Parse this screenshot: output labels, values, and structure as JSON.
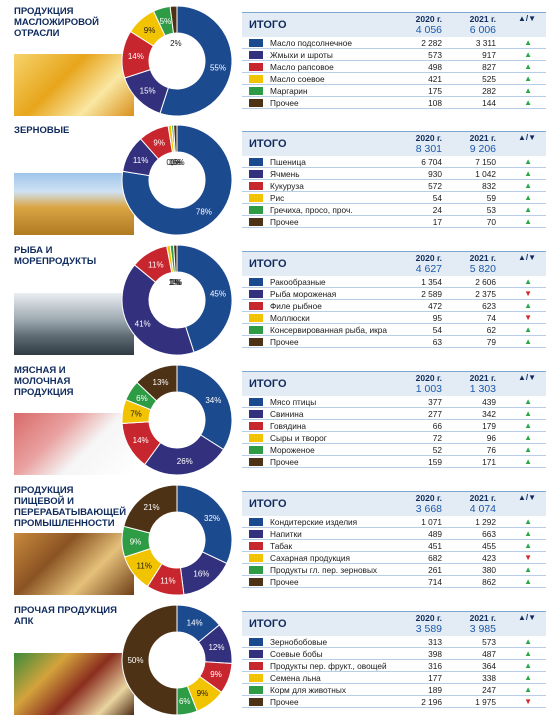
{
  "colors": {
    "navy": "#1c4a8f",
    "indigo": "#33307e",
    "red": "#c8262e",
    "yellow": "#f2c300",
    "green": "#2e9b45",
    "brown": "#4e3215",
    "up": "#2aa84a",
    "down": "#d8262d"
  },
  "header_labels": {
    "itogo": "ИТОГО",
    "y2020": "2020 г.",
    "y2021": "2021 г.",
    "arrows": "▲/▼"
  },
  "sections": [
    {
      "title": "ПРОДУКЦИЯ МАСЛОЖИРОВОЙ ОТРАСЛИ",
      "total_2020": "4 056",
      "total_2021": "6 006",
      "pie_labels": [
        "55%",
        "15%",
        "14%",
        "9%",
        "5%",
        "2%"
      ],
      "rows": [
        {
          "label": "Масло подсолнечное",
          "v2020": "2 282",
          "v2021": "3 311",
          "trend": "▲",
          "color": "#1c4a8f"
        },
        {
          "label": "Жмыхи и шроты",
          "v2020": "573",
          "v2021": "917",
          "trend": "▲",
          "color": "#33307e"
        },
        {
          "label": "Масло рапсовое",
          "v2020": "498",
          "v2021": "827",
          "trend": "▲",
          "color": "#c8262e"
        },
        {
          "label": "Масло соевое",
          "v2020": "421",
          "v2021": "525",
          "trend": "▲",
          "color": "#f2c300"
        },
        {
          "label": "Маргарин",
          "v2020": "175",
          "v2021": "282",
          "trend": "▲",
          "color": "#2e9b45"
        },
        {
          "label": "Прочее",
          "v2020": "108",
          "v2021": "144",
          "trend": "▲",
          "color": "#4e3215"
        }
      ]
    },
    {
      "title": "ЗЕРНОВЫЕ",
      "total_2020": "8 301",
      "total_2021": "9 206",
      "pie_labels": [
        "78%",
        "11%",
        "9%",
        "1%",
        "0,6%",
        "1%"
      ],
      "rows": [
        {
          "label": "Пшеница",
          "v2020": "6 704",
          "v2021": "7 150",
          "trend": "▲",
          "color": "#1c4a8f"
        },
        {
          "label": "Ячмень",
          "v2020": "930",
          "v2021": "1 042",
          "trend": "▲",
          "color": "#33307e"
        },
        {
          "label": "Кукуруза",
          "v2020": "572",
          "v2021": "832",
          "trend": "▲",
          "color": "#c8262e"
        },
        {
          "label": "Рис",
          "v2020": "54",
          "v2021": "59",
          "trend": "▲",
          "color": "#f2c300"
        },
        {
          "label": "Гречиха, просо, проч.",
          "v2020": "24",
          "v2021": "53",
          "trend": "▲",
          "color": "#2e9b45"
        },
        {
          "label": "Прочее",
          "v2020": "17",
          "v2021": "70",
          "trend": "▲",
          "color": "#4e3215"
        }
      ]
    },
    {
      "title": "РЫБА И МОРЕПРОДУКТЫ",
      "total_2020": "4 627",
      "total_2021": "5 820",
      "pie_labels": [
        "45%",
        "41%",
        "11%",
        "1%",
        "1%",
        "1%"
      ],
      "rows": [
        {
          "label": "Ракообразные",
          "v2020": "1 354",
          "v2021": "2 606",
          "trend": "▲",
          "color": "#1c4a8f"
        },
        {
          "label": "Рыба мороженая",
          "v2020": "2 589",
          "v2021": "2 375",
          "trend": "▼",
          "color": "#33307e"
        },
        {
          "label": "Филе рыбное",
          "v2020": "472",
          "v2021": "623",
          "trend": "▲",
          "color": "#c8262e"
        },
        {
          "label": "Моллюски",
          "v2020": "95",
          "v2021": "74",
          "trend": "▼",
          "color": "#f2c300"
        },
        {
          "label": "Консервированная рыба, икра",
          "v2020": "54",
          "v2021": "62",
          "trend": "▲",
          "color": "#2e9b45"
        },
        {
          "label": "Прочее",
          "v2020": "63",
          "v2021": "79",
          "trend": "▲",
          "color": "#4e3215"
        }
      ]
    },
    {
      "title": "МЯСНАЯ И МОЛОЧНАЯ ПРОДУКЦИЯ",
      "total_2020": "1 003",
      "total_2021": "1 303",
      "pie_labels": [
        "34%",
        "26%",
        "14%",
        "7%",
        "6%",
        "13%"
      ],
      "rows": [
        {
          "label": "Мясо птицы",
          "v2020": "377",
          "v2021": "439",
          "trend": "▲",
          "color": "#1c4a8f"
        },
        {
          "label": "Свинина",
          "v2020": "277",
          "v2021": "342",
          "trend": "▲",
          "color": "#33307e"
        },
        {
          "label": "Говядина",
          "v2020": "66",
          "v2021": "179",
          "trend": "▲",
          "color": "#c8262e"
        },
        {
          "label": "Сыры и творог",
          "v2020": "72",
          "v2021": "96",
          "trend": "▲",
          "color": "#f2c300"
        },
        {
          "label": "Мороженое",
          "v2020": "52",
          "v2021": "76",
          "trend": "▲",
          "color": "#2e9b45"
        },
        {
          "label": "Прочее",
          "v2020": "159",
          "v2021": "171",
          "trend": "▲",
          "color": "#4e3215"
        }
      ]
    },
    {
      "title": "ПРОДУКЦИЯ ПИЩЕВОЙ И ПЕРЕРАБАТЫВАЮЩЕЙ ПРОМЫШЛЕННОСТИ",
      "total_2020": "3 668",
      "total_2021": "4 074",
      "pie_labels": [
        "32%",
        "16%",
        "11%",
        "11%",
        "9%",
        "21%"
      ],
      "rows": [
        {
          "label": "Кондитерские изделия",
          "v2020": "1 071",
          "v2021": "1 292",
          "trend": "▲",
          "color": "#1c4a8f"
        },
        {
          "label": "Напитки",
          "v2020": "489",
          "v2021": "663",
          "trend": "▲",
          "color": "#33307e"
        },
        {
          "label": "Табак",
          "v2020": "451",
          "v2021": "455",
          "trend": "▲",
          "color": "#c8262e"
        },
        {
          "label": "Сахарная продукция",
          "v2020": "682",
          "v2021": "423",
          "trend": "▼",
          "color": "#f2c300"
        },
        {
          "label": "Продукты гл. пер. зерновых",
          "v2020": "261",
          "v2021": "380",
          "trend": "▲",
          "color": "#2e9b45"
        },
        {
          "label": "Прочее",
          "v2020": "714",
          "v2021": "862",
          "trend": "▲",
          "color": "#4e3215"
        }
      ]
    },
    {
      "title": "ПРОЧАЯ ПРОДУКЦИЯ АПК",
      "total_2020": "3 589",
      "total_2021": "3 985",
      "pie_labels": [
        "14%",
        "12%",
        "9%",
        "9%",
        "6%",
        "50%"
      ],
      "rows": [
        {
          "label": "Зернобобовые",
          "v2020": "313",
          "v2021": "573",
          "trend": "▲",
          "color": "#1c4a8f"
        },
        {
          "label": "Соевые бобы",
          "v2020": "398",
          "v2021": "487",
          "trend": "▲",
          "color": "#33307e"
        },
        {
          "label": "Продукты пер. фрукт., овощей",
          "v2020": "316",
          "v2021": "364",
          "trend": "▲",
          "color": "#c8262e"
        },
        {
          "label": "Семена льна",
          "v2020": "177",
          "v2021": "338",
          "trend": "▲",
          "color": "#f2c300"
        },
        {
          "label": "Корм для животных",
          "v2020": "189",
          "v2021": "247",
          "trend": "▲",
          "color": "#2e9b45"
        },
        {
          "label": "Прочее",
          "v2020": "2 196",
          "v2021": "1 975",
          "trend": "▼",
          "color": "#4e3215"
        }
      ]
    }
  ],
  "chart_data": [
    {
      "type": "pie",
      "title": "ПРОДУКЦИЯ МАСЛОЖИРОВОЙ ОТРАСЛИ",
      "categories": [
        "Масло подсолнечное",
        "Жмыхи и шроты",
        "Масло рапсовое",
        "Масло соевое",
        "Маргарин",
        "Прочее"
      ],
      "values": [
        55,
        15,
        14,
        9,
        5,
        2
      ]
    },
    {
      "type": "pie",
      "title": "ЗЕРНОВЫЕ",
      "categories": [
        "Пшеница",
        "Ячмень",
        "Кукуруза",
        "Рис",
        "Гречиха, просо, проч.",
        "Прочее"
      ],
      "values": [
        78,
        11,
        9,
        1,
        0.6,
        1
      ]
    },
    {
      "type": "pie",
      "title": "РЫБА И МОРЕПРОДУКТЫ",
      "categories": [
        "Ракообразные",
        "Рыба мороженая",
        "Филе рыбное",
        "Моллюски",
        "Консервированная рыба, икра",
        "Прочее"
      ],
      "values": [
        45,
        41,
        11,
        1,
        1,
        1
      ]
    },
    {
      "type": "pie",
      "title": "МЯСНАЯ И МОЛОЧНАЯ ПРОДУКЦИЯ",
      "categories": [
        "Мясо птицы",
        "Свинина",
        "Говядина",
        "Сыры и творог",
        "Мороженое",
        "Прочее"
      ],
      "values": [
        34,
        26,
        14,
        7,
        6,
        13
      ]
    },
    {
      "type": "pie",
      "title": "ПРОДУКЦИЯ ПИЩЕВОЙ И ПЕРЕРАБАТЫВАЮЩЕЙ ПРОМЫШЛЕННОСТИ",
      "categories": [
        "Кондитерские изделия",
        "Напитки",
        "Табак",
        "Сахарная продукция",
        "Продукты гл. пер. зерновых",
        "Прочее"
      ],
      "values": [
        32,
        16,
        11,
        11,
        9,
        21
      ]
    },
    {
      "type": "pie",
      "title": "ПРОЧАЯ ПРОДУКЦИЯ АПК",
      "categories": [
        "Зернобобовые",
        "Соевые бобы",
        "Продукты пер. фрукт., овощей",
        "Семена льна",
        "Корм для животных",
        "Прочее"
      ],
      "values": [
        14,
        12,
        9,
        9,
        6,
        50
      ]
    }
  ]
}
